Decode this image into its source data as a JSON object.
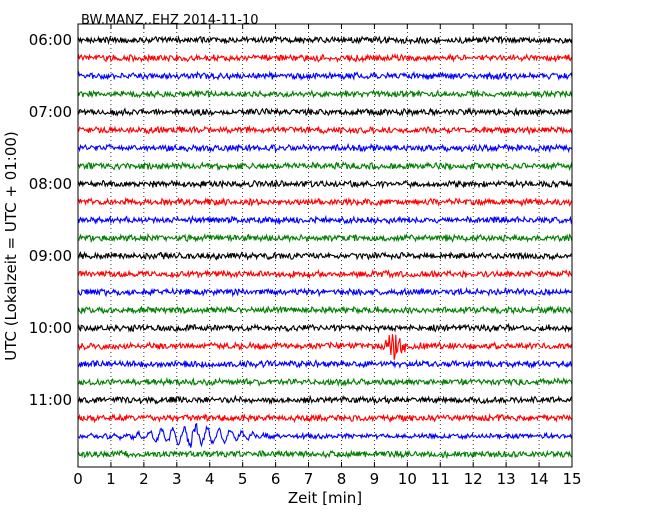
{
  "chart_data": {
    "type": "line",
    "title": "BW.MANZ..EHZ 2014-11-10",
    "xlabel": "Zeit  [min]",
    "ylabel": "UTC (Lokalzeit = UTC + 01:00)",
    "xlim": [
      0,
      15
    ],
    "x_ticks": [
      "0",
      "1",
      "2",
      "3",
      "4",
      "5",
      "6",
      "7",
      "8",
      "9",
      "10",
      "11",
      "12",
      "13",
      "14",
      "15"
    ],
    "y_ticks": [
      "06:00",
      "07:00",
      "08:00",
      "09:00",
      "10:00",
      "11:00"
    ],
    "grid": "vertical dotted",
    "trace_colors": [
      "#000000",
      "#ff0000",
      "#0000ff",
      "#007f00"
    ],
    "traces": [
      {
        "start": "06:00",
        "amplitude": 0.2
      },
      {
        "start": "06:15",
        "amplitude": 0.2
      },
      {
        "start": "06:30",
        "amplitude": 0.2
      },
      {
        "start": "06:45",
        "amplitude": 0.2
      },
      {
        "start": "07:00",
        "amplitude": 0.2
      },
      {
        "start": "07:15",
        "amplitude": 0.2
      },
      {
        "start": "07:30",
        "amplitude": 0.2
      },
      {
        "start": "07:45",
        "amplitude": 0.2
      },
      {
        "start": "08:00",
        "amplitude": 0.2
      },
      {
        "start": "08:15",
        "amplitude": 0.2
      },
      {
        "start": "08:30",
        "amplitude": 0.2
      },
      {
        "start": "08:45",
        "amplitude": 0.2
      },
      {
        "start": "09:00",
        "amplitude": 0.2
      },
      {
        "start": "09:15",
        "amplitude": 0.2
      },
      {
        "start": "09:30",
        "amplitude": 0.2
      },
      {
        "start": "09:45",
        "amplitude": 0.2
      },
      {
        "start": "10:00",
        "amplitude": 0.2
      },
      {
        "start": "10:15",
        "amplitude": 0.2,
        "event": {
          "t": 9.6,
          "amplitude": 0.7
        }
      },
      {
        "start": "10:30",
        "amplitude": 0.2
      },
      {
        "start": "10:45",
        "amplitude": 0.2
      },
      {
        "start": "11:00",
        "amplitude": 0.2
      },
      {
        "start": "11:15",
        "amplitude": 0.2
      },
      {
        "start": "11:30",
        "amplitude": 0.25,
        "event": {
          "t": 3.5,
          "amplitude": 0.45
        }
      },
      {
        "start": "11:45",
        "amplitude": 0.2
      }
    ]
  }
}
